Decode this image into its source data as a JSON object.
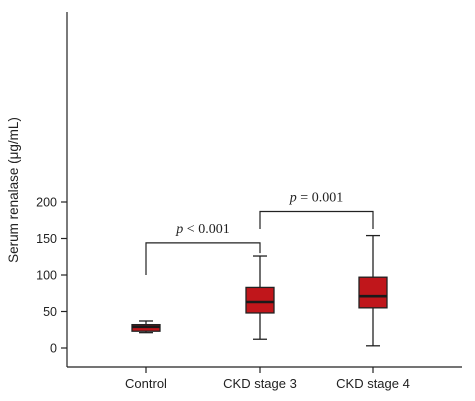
{
  "chart_data": {
    "type": "box",
    "ylabel": "Serum renalase (μg/mL)",
    "ylim": [
      0,
      230
    ],
    "yticks": [
      0,
      50,
      100,
      150,
      200
    ],
    "categories": [
      "Control",
      "CKD stage 3",
      "CKD stage 4"
    ],
    "boxes": [
      {
        "category": "Control",
        "min": 21,
        "q1": 23,
        "median": 29,
        "q3": 32,
        "max": 37
      },
      {
        "category": "CKD stage 3",
        "min": 12,
        "q1": 48,
        "median": 63,
        "q3": 83,
        "max": 126
      },
      {
        "category": "CKD stage 4",
        "min": 3,
        "q1": 55,
        "median": 71,
        "q3": 97,
        "max": 154
      }
    ],
    "annotations": [
      {
        "from": "Control",
        "to": "CKD stage 3",
        "italic": "p",
        "text": " < 0.001",
        "bracket_y": 144,
        "left_drop_y": 100,
        "right_drop_y": 130
      },
      {
        "from": "CKD stage 3",
        "to": "CKD stage 4",
        "italic": "p",
        "text": " = 0.001",
        "bracket_y": 187,
        "left_drop_y": 163,
        "right_drop_y": 163
      }
    ],
    "box_color": "#c0161b",
    "line_color": "#222222",
    "grid": false
  }
}
